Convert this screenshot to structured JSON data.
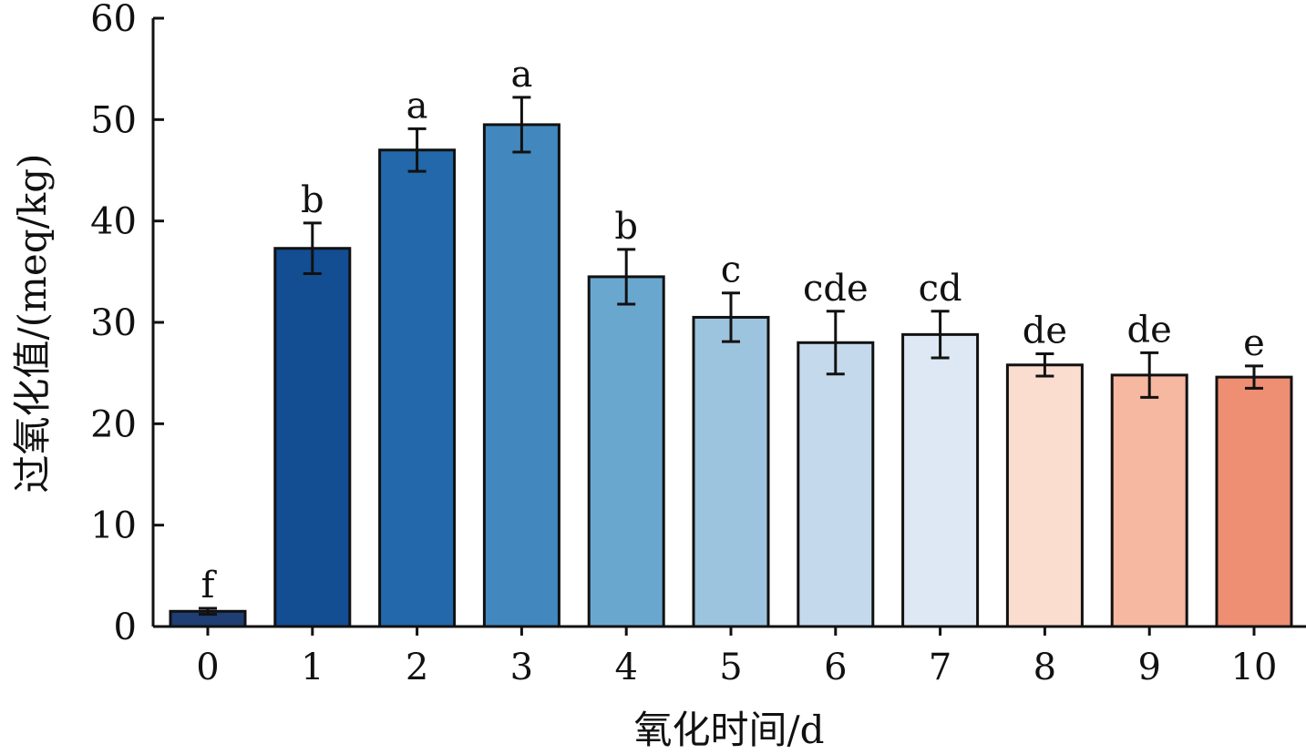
{
  "chart_data": {
    "type": "bar",
    "xlabel": "氧化时间/d",
    "ylabel": "过氧化值/(meq/kg)",
    "ylim": [
      0,
      60
    ],
    "yticks": [
      0,
      10,
      20,
      30,
      40,
      50,
      60
    ],
    "categories": [
      "0",
      "1",
      "2",
      "3",
      "4",
      "5",
      "6",
      "7",
      "8",
      "9",
      "10"
    ],
    "values": [
      1.5,
      37.3,
      47.0,
      49.5,
      34.5,
      30.5,
      28.0,
      28.8,
      25.8,
      24.8,
      24.6
    ],
    "errors": [
      0.3,
      2.5,
      2.1,
      2.7,
      2.7,
      2.4,
      3.1,
      2.3,
      1.1,
      2.2,
      1.1
    ],
    "significance": [
      "f",
      "b",
      "a",
      "a",
      "b",
      "c",
      "cde",
      "cd",
      "de",
      "de",
      "e"
    ],
    "colors": [
      "#1f3e73",
      "#134d92",
      "#2268aa",
      "#4288bf",
      "#6aa7cf",
      "#9dc4de",
      "#c5d9ec",
      "#dde8f4",
      "#fbddd0",
      "#f6b8a0",
      "#ee8e73"
    ],
    "grid": false,
    "legend": "none"
  }
}
